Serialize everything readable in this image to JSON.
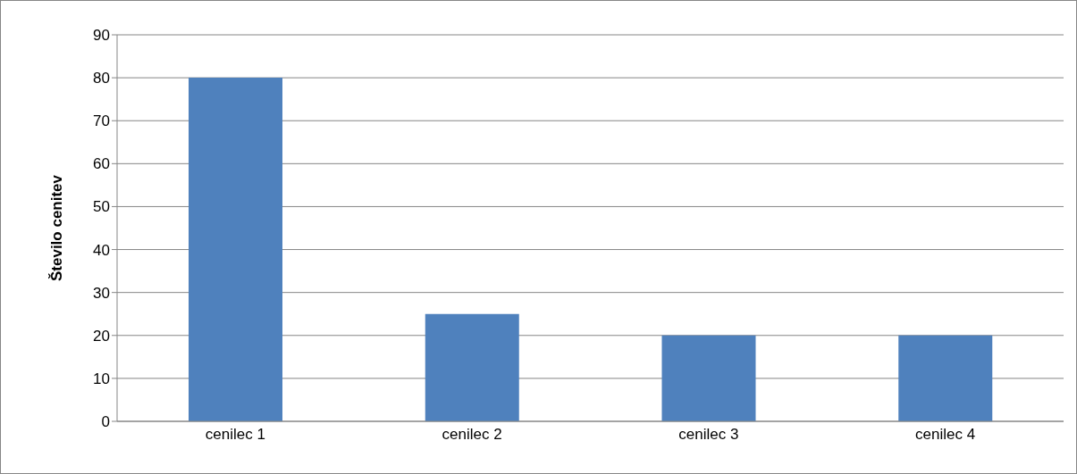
{
  "chart_data": {
    "type": "bar",
    "ylabel": "Število cenitev",
    "categories": [
      "cenilec 1",
      "cenilec 2",
      "cenilec 3",
      "cenilec 4"
    ],
    "values": [
      80,
      25,
      20,
      20
    ],
    "color": "#4f81bd",
    "ylim": [
      0,
      90
    ],
    "yticks": [
      0,
      10,
      20,
      30,
      40,
      50,
      60,
      70,
      80,
      90
    ],
    "grid": "y",
    "legend": false
  }
}
